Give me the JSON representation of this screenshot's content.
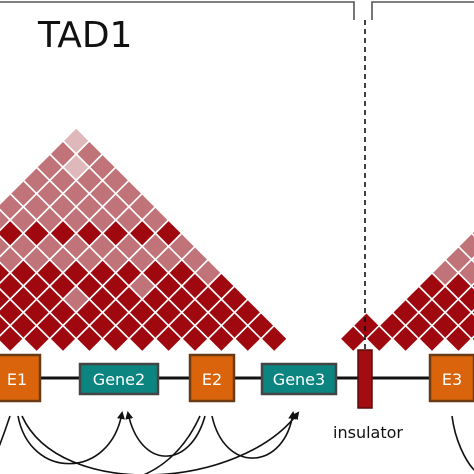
{
  "tad_label": "TAD1",
  "insulator_label": "insulator",
  "colors": {
    "dark": "#a0080f",
    "mid": "#c07378",
    "light": "#dfb8bb",
    "enhancer_fill": "#d9640b",
    "enhancer_stroke": "#6b3a12",
    "gene_fill": "#0c8581",
    "gene_stroke": "#444444",
    "insulator_fill": "#a30d12"
  },
  "elements": [
    {
      "id": "e1",
      "label": "E1",
      "kind": "enhancer"
    },
    {
      "id": "gene2",
      "label": "Gene2",
      "kind": "gene"
    },
    {
      "id": "e2",
      "label": "E2",
      "kind": "enhancer"
    },
    {
      "id": "gene3",
      "label": "Gene3",
      "kind": "gene"
    },
    {
      "id": "e3",
      "label": "E3",
      "kind": "enhancer"
    }
  ]
}
